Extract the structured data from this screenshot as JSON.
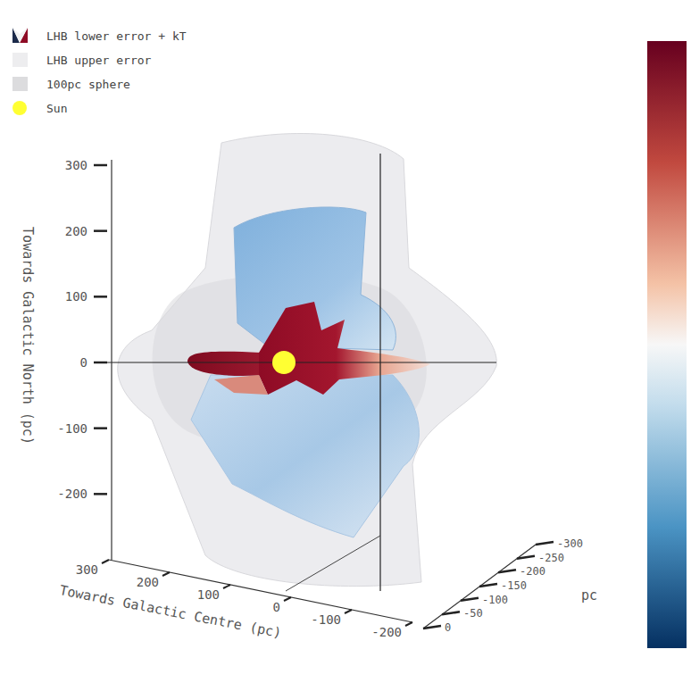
{
  "chart_data": {
    "type": "surface3d",
    "series": [
      {
        "name": "LHB lower error + kT",
        "color": "#1b2a4a"
      },
      {
        "name": "LHB upper error",
        "color": "#ededef"
      },
      {
        "name": "100pc sphere",
        "color": "#dcdcde"
      },
      {
        "name": "Sun",
        "color": "#ffff33"
      }
    ],
    "x_label": "Towards Galactic Centre (pc)",
    "y_label": "pc",
    "z_label": "Towards Galactic North (pc)",
    "xlim": [
      -200,
      300
    ],
    "xticks": [
      300,
      200,
      100,
      0,
      -100,
      -200
    ],
    "ylim": [
      -300,
      0
    ],
    "yticks": [
      0,
      -50,
      -100,
      -150,
      -200,
      -250,
      -300
    ],
    "zlim": [
      -300,
      300
    ],
    "zticks": [
      -200,
      -100,
      0,
      100,
      200,
      300
    ]
  }
}
